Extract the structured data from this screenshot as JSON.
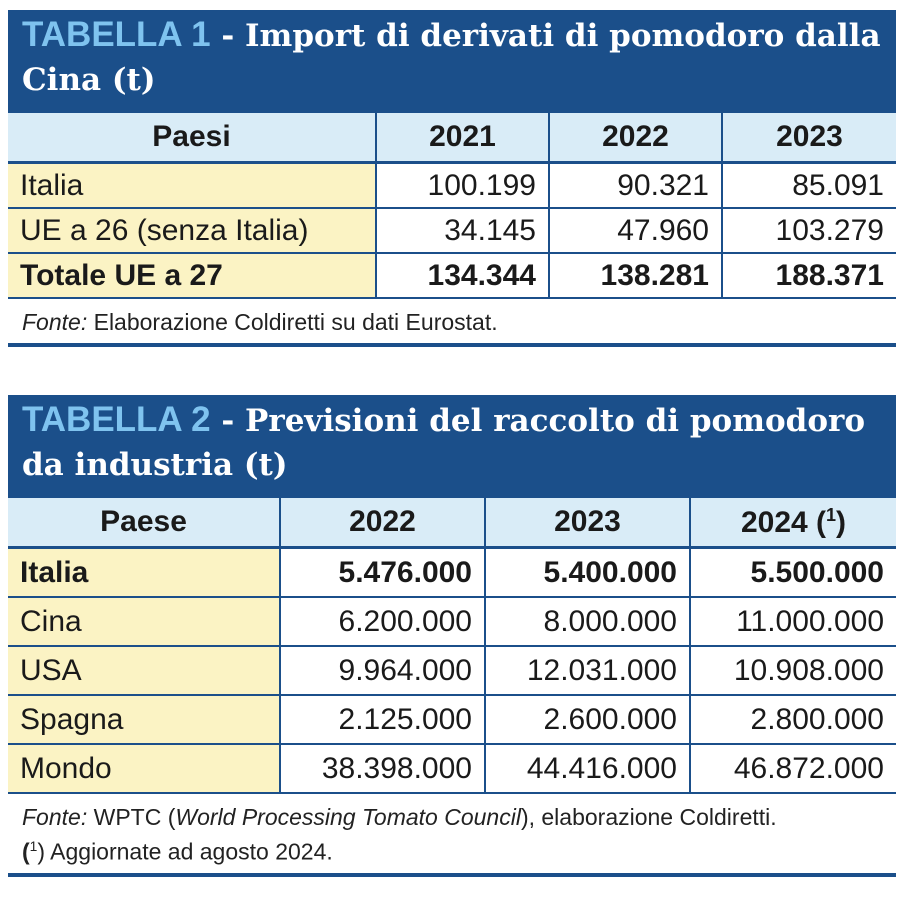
{
  "table1": {
    "label": "TABELLA 1",
    "title": " - Import di derivati di pomodoro dalla Cina (t)",
    "headers": [
      "Paesi",
      "2021",
      "2022",
      "2023"
    ],
    "rows": [
      {
        "name": "Italia",
        "values": [
          "100.199",
          "90.321",
          "85.091"
        ]
      },
      {
        "name": "UE a 26 (senza Italia)",
        "values": [
          "34.145",
          "47.960",
          "103.279"
        ]
      },
      {
        "name": "Totale UE a 27",
        "values": [
          "134.344",
          "138.281",
          "188.371"
        ]
      }
    ],
    "source_label": "Fonte:",
    "source_text": " Elaborazione Coldiretti su dati Eurostat."
  },
  "table2": {
    "label": "TABELLA 2",
    "title": " - Previsioni del raccolto di pomodoro da industria (t)",
    "headers": [
      "Paese",
      "2022",
      "2023",
      "2024 ("
    ],
    "header_note_sup": "1",
    "header_note_close": ")",
    "rows": [
      {
        "name": "Italia",
        "values": [
          "5.476.000",
          "5.400.000",
          "5.500.000"
        ]
      },
      {
        "name": "Cina",
        "values": [
          "6.200.000",
          "8.000.000",
          "11.000.000"
        ]
      },
      {
        "name": "USA",
        "values": [
          "9.964.000",
          "12.031.000",
          "10.908.000"
        ]
      },
      {
        "name": "Spagna",
        "values": [
          "2.125.000",
          "2.600.000",
          "2.800.000"
        ]
      },
      {
        "name": "Mondo",
        "values": [
          "38.398.000",
          "44.416.000",
          "46.872.000"
        ]
      }
    ],
    "source_label": "Fonte:",
    "source_text_a": " WPTC (",
    "source_italic": "World Processing Tomato Council",
    "source_text_b": "), elaborazione Coldiretti.",
    "note_open": "(",
    "note_sup": "1",
    "note_text": ") Aggiornate ad agosto 2024."
  }
}
